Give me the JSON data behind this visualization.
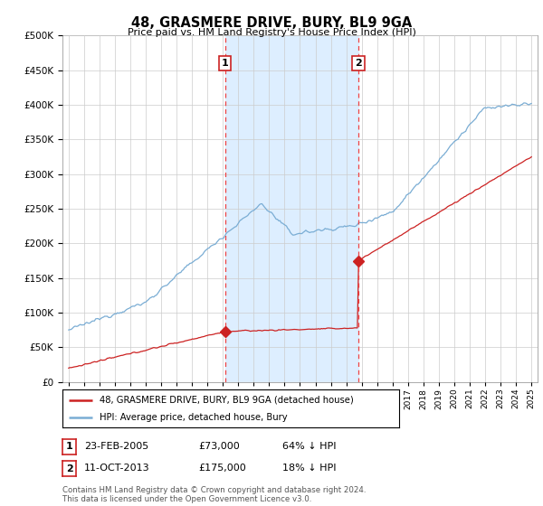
{
  "title": "48, GRASMERE DRIVE, BURY, BL9 9GA",
  "subtitle": "Price paid vs. HM Land Registry's House Price Index (HPI)",
  "ylim": [
    0,
    500000
  ],
  "yticks": [
    0,
    50000,
    100000,
    150000,
    200000,
    250000,
    300000,
    350000,
    400000,
    450000,
    500000
  ],
  "hpi_color": "#7aadd4",
  "price_color": "#cc2222",
  "vline_color": "#ee4444",
  "shade_color": "#ddeeff",
  "transaction1_date": 2005.14,
  "transaction1_price": 73000,
  "transaction1_label": "1",
  "transaction2_date": 2013.78,
  "transaction2_price": 175000,
  "transaction2_label": "2",
  "legend_entry1": "48, GRASMERE DRIVE, BURY, BL9 9GA (detached house)",
  "legend_entry2": "HPI: Average price, detached house, Bury",
  "table_row1": [
    "1",
    "23-FEB-2005",
    "£73,000",
    "64% ↓ HPI"
  ],
  "table_row2": [
    "2",
    "11-OCT-2013",
    "£175,000",
    "18% ↓ HPI"
  ],
  "footer": "Contains HM Land Registry data © Crown copyright and database right 2024.\nThis data is licensed under the Open Government Licence v3.0.",
  "background_color": "#ffffff",
  "grid_color": "#cccccc"
}
